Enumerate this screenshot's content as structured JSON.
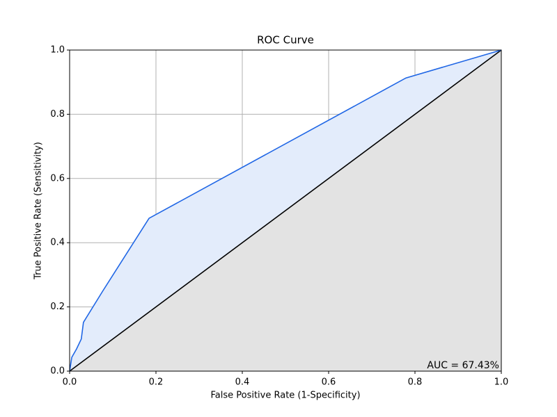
{
  "chart_data": {
    "type": "line",
    "title": "ROC Curve",
    "xlabel": "False Positive Rate (1-Specificity)",
    "ylabel": "True Positive Rate (Sensitivity)",
    "annotation": "AUC = 67.43%",
    "x": [
      0,
      0.005,
      0.016,
      0.027,
      0.032,
      0.077,
      0.184,
      0.779,
      1
    ],
    "values": [
      0,
      0.043,
      0.069,
      0.1,
      0.152,
      0.25,
      0.476,
      0.913,
      1
    ],
    "color": "#1f66e5",
    "fill_color": "#e3ecfb",
    "reference_line": {
      "x": [
        0,
        1
      ],
      "values": [
        0,
        1
      ],
      "color": "#000000",
      "fill_color": "#e3e3e3"
    },
    "xlim": [
      0,
      1
    ],
    "ylim": [
      0,
      1
    ],
    "xticks": [
      {
        "value": 0,
        "label": "0.0"
      },
      0.2,
      0.4,
      0.6,
      0.8,
      {
        "value": 1,
        "label": "1.0"
      }
    ],
    "yticks": [
      {
        "value": 0,
        "label": "0.0"
      },
      0.2,
      0.4,
      0.6,
      0.8,
      {
        "value": 1,
        "label": "1.0"
      }
    ],
    "grid": true
  }
}
